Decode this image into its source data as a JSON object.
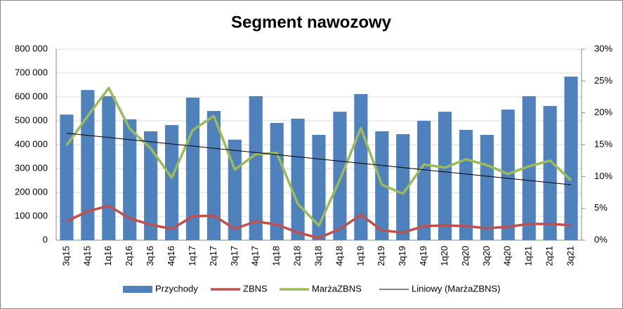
{
  "chart_data": {
    "type": "combo",
    "title": "Segment nawozowy",
    "categories": [
      "3q15",
      "4q15",
      "1q16",
      "2q16",
      "3q16",
      "4q16",
      "1q17",
      "2q17",
      "3q17",
      "4q17",
      "1q18",
      "2q18",
      "3q18",
      "4q18",
      "1q19",
      "2q19",
      "3q19",
      "4q19",
      "1q20",
      "2q20",
      "3q20",
      "4q20",
      "1q21",
      "2q21",
      "3q21"
    ],
    "series": [
      {
        "name": "Przychody",
        "kind": "bar",
        "color": "#4f81bd",
        "values": [
          526000,
          629000,
          603000,
          506000,
          456000,
          482000,
          597000,
          541000,
          421000,
          603000,
          491000,
          509000,
          441000,
          538000,
          612000,
          456000,
          444000,
          500000,
          538000,
          462000,
          441000,
          547000,
          603000,
          562000,
          685000
        ]
      },
      {
        "name": "ZBNS",
        "kind": "line",
        "color": "#c0504d",
        "values": [
          79000,
          121000,
          144000,
          91000,
          65000,
          47000,
          100000,
          103000,
          47000,
          79000,
          65000,
          32000,
          9000,
          47000,
          106000,
          41000,
          32000,
          59000,
          62000,
          59000,
          50000,
          56000,
          68000,
          68000,
          62000
        ]
      },
      {
        "name": "MarżaZBNS",
        "kind": "line",
        "axis": "y2",
        "color": "#9bbb59",
        "values": [
          14.9,
          19.5,
          23.9,
          17.5,
          14.4,
          9.8,
          17.3,
          19.5,
          11.1,
          13.5,
          13.7,
          5.7,
          2.3,
          9.5,
          17.6,
          8.7,
          7.3,
          11.9,
          11.4,
          12.7,
          11.8,
          10.4,
          11.6,
          12.5,
          9.4
        ]
      },
      {
        "name": "Liniowy (MarżaZBNS)",
        "kind": "trend",
        "axis": "y2",
        "color": "#000000",
        "values": [
          16.8,
          16.46,
          16.13,
          15.79,
          15.45,
          15.11,
          14.78,
          14.44,
          14.1,
          13.76,
          13.43,
          13.09,
          12.75,
          12.41,
          12.08,
          11.74,
          11.4,
          11.06,
          10.73,
          10.39,
          10.05,
          9.71,
          9.38,
          9.04,
          8.7
        ]
      }
    ],
    "ylim": [
      0,
      800000
    ],
    "yticks": [
      0,
      {
        "value": 100000,
        "label": "100 000"
      },
      {
        "value": 200000,
        "label": "200 000"
      },
      {
        "value": 300000,
        "label": "300 000"
      },
      {
        "value": 400000,
        "label": "400 000"
      },
      {
        "value": 500000,
        "label": "500 000"
      },
      {
        "value": 600000,
        "label": "600 000"
      },
      {
        "value": 700000,
        "label": "700 000"
      },
      {
        "value": 800000,
        "label": "800 000"
      }
    ],
    "y2lim": [
      0,
      30
    ],
    "y2ticks": [
      {
        "value": 0,
        "label": "0%"
      },
      {
        "value": 5,
        "label": "5%"
      },
      {
        "value": 10,
        "label": "10%"
      },
      {
        "value": 15,
        "label": "15%"
      },
      {
        "value": 20,
        "label": "20%"
      },
      {
        "value": 25,
        "label": "25%"
      },
      {
        "value": 30,
        "label": "30%"
      }
    ],
    "grid": true,
    "legend": "bottom"
  }
}
